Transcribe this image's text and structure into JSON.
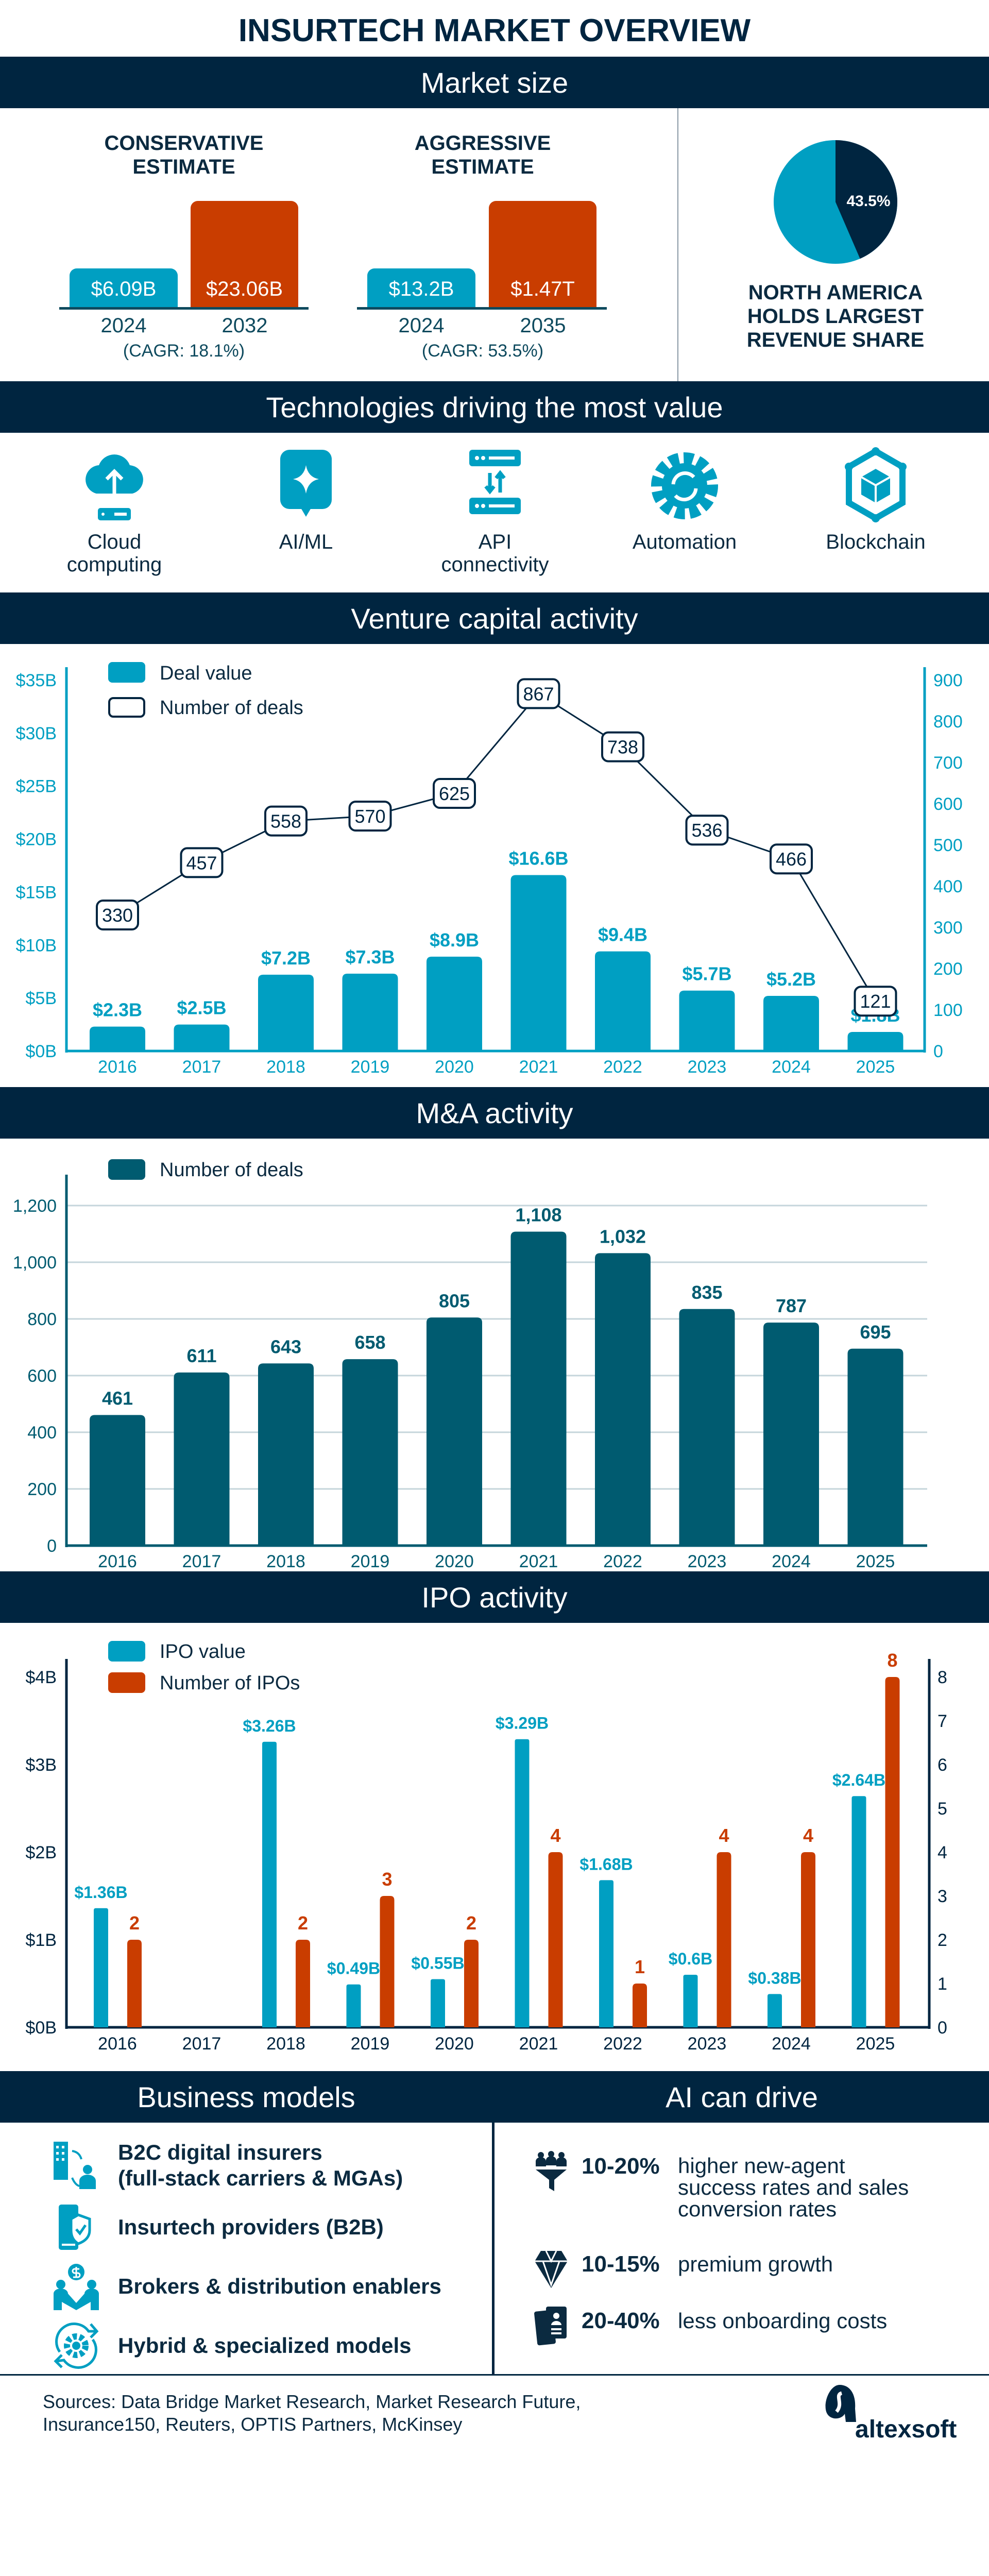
{
  "title": "INSURTECH MARKET OVERVIEW",
  "colors": {
    "navy": "#002540",
    "teal": "#009fc2",
    "orange": "#c93d00",
    "dark_teal": "#005b70",
    "text": "#0b2a40"
  },
  "market_size": {
    "header": "Market size",
    "conservative": {
      "title_line1": "CONSERVATIVE",
      "title_line2": "ESTIMATE",
      "start_value": "$6.09B",
      "end_value": "$23.06B",
      "start_year": "2024",
      "end_year": "2032",
      "cagr": "(CAGR: 18.1%)"
    },
    "aggressive": {
      "title_line1": "AGGRESSIVE",
      "title_line2": "ESTIMATE",
      "start_value": "$13.2B",
      "end_value": "$1.47T",
      "start_year": "2024",
      "end_year": "2035",
      "cagr": "(CAGR: 53.5%)"
    },
    "pie": {
      "share_percent": 43.5,
      "label": "43.5%",
      "caption_line1": "NORTH AMERICA",
      "caption_line2": "HOLDS LARGEST",
      "caption_line3": "REVENUE SHARE"
    }
  },
  "technologies": {
    "header": "Technologies driving the most value",
    "items": [
      {
        "icon": "cloud-upload-icon",
        "line1": "Cloud",
        "line2": "computing"
      },
      {
        "icon": "ai-sparkle-icon",
        "line1": "AI/ML",
        "line2": ""
      },
      {
        "icon": "api-server-icon",
        "line1": "API",
        "line2": "connectivity"
      },
      {
        "icon": "gear-sync-icon",
        "line1": "Automation",
        "line2": ""
      },
      {
        "icon": "blockchain-cube-icon",
        "line1": "Blockchain",
        "line2": ""
      }
    ]
  },
  "chart_data": [
    {
      "id": "vc",
      "header": "Venture capital activity",
      "type": "bar+line",
      "categories": [
        "2016",
        "2017",
        "2018",
        "2019",
        "2020",
        "2021",
        "2022",
        "2023",
        "2024",
        "2025"
      ],
      "series": [
        {
          "name": "Deal value",
          "type": "bar",
          "axis": "left",
          "values": [
            2.3,
            2.5,
            7.2,
            7.3,
            8.9,
            16.6,
            9.4,
            5.7,
            5.2,
            1.8
          ],
          "labels": [
            "$2.3B",
            "$2.5B",
            "$7.2B",
            "$7.3B",
            "$8.9B",
            "$16.6B",
            "$9.4B",
            "$5.7B",
            "$5.2B",
            "$1.8B"
          ]
        },
        {
          "name": "Number of deals",
          "type": "line",
          "axis": "right",
          "values": [
            330,
            457,
            558,
            570,
            625,
            867,
            738,
            536,
            466,
            121
          ],
          "labels": [
            "330",
            "457",
            "558",
            "570",
            "625",
            "867",
            "738",
            "536",
            "466",
            "121"
          ]
        }
      ],
      "y_left": {
        "ylim": [
          0,
          35
        ],
        "ticks": [
          "$0B",
          "$5B",
          "$10B",
          "$15B",
          "$20B",
          "$25B",
          "$30B",
          "$35B"
        ]
      },
      "y_right": {
        "ylim": [
          0,
          900
        ],
        "ticks": [
          "0",
          "100",
          "200",
          "300",
          "400",
          "500",
          "600",
          "700",
          "800",
          "900"
        ]
      },
      "grid": false,
      "legend": "top-left"
    },
    {
      "id": "ma",
      "header": "M&A activity",
      "type": "bar",
      "categories": [
        "2016",
        "2017",
        "2018",
        "2019",
        "2020",
        "2021",
        "2022",
        "2023",
        "2024",
        "2025"
      ],
      "series": [
        {
          "name": "Number of deals",
          "values": [
            461,
            611,
            643,
            658,
            805,
            1108,
            1032,
            835,
            787,
            695
          ],
          "labels": [
            "461",
            "611",
            "643",
            "658",
            "805",
            "1,108",
            "1,032",
            "835",
            "787",
            "695"
          ]
        }
      ],
      "y_left": {
        "ylim": [
          0,
          1300
        ],
        "ticks": [
          "0",
          "200",
          "400",
          "600",
          "800",
          "1,000",
          "1,200"
        ]
      },
      "grid": true,
      "legend": "top-left"
    },
    {
      "id": "ipo",
      "header": "IPO activity",
      "type": "grouped-bar",
      "categories": [
        "2016",
        "2017",
        "2018",
        "2019",
        "2020",
        "2021",
        "2022",
        "2023",
        "2024",
        "2025"
      ],
      "series": [
        {
          "name": "IPO value",
          "axis": "left",
          "values": [
            1.36,
            null,
            3.26,
            0.49,
            0.55,
            3.29,
            1.68,
            0.6,
            0.38,
            2.64
          ],
          "labels": [
            "$1.36B",
            "",
            "$3.26B",
            "$0.49B",
            "$0.55B",
            "$3.29B",
            "$1.68B",
            "$0.6B",
            "$0.38B",
            "$2.64B"
          ]
        },
        {
          "name": "Number of IPOs",
          "axis": "right",
          "values": [
            2,
            null,
            2,
            3,
            2,
            4,
            1,
            4,
            4,
            8
          ],
          "labels": [
            "2",
            "",
            "2",
            "3",
            "2",
            "4",
            "1",
            "4",
            "4",
            "8"
          ]
        }
      ],
      "y_left": {
        "ylim": [
          0,
          4
        ],
        "ticks": [
          "$0B",
          "$1B",
          "$2B",
          "$3B",
          "$4B"
        ]
      },
      "y_right": {
        "ylim": [
          0,
          8
        ],
        "ticks": [
          "0",
          "1",
          "2",
          "3",
          "4",
          "5",
          "6",
          "7",
          "8"
        ]
      },
      "grid": false,
      "legend": "top-left"
    }
  ],
  "business_models": {
    "header": "Business models",
    "items": [
      {
        "icon": "building-user-icon",
        "line1": "B2C digital insurers",
        "line2": "(full-stack carriers & MGAs)"
      },
      {
        "icon": "phone-shield-icon",
        "line1": "Insurtech providers (B2B)",
        "line2": ""
      },
      {
        "icon": "broker-handshake-icon",
        "line1": "Brokers & distribution enablers",
        "line2": ""
      },
      {
        "icon": "gear-cycle-icon",
        "line1": "Hybrid & specialized models",
        "line2": ""
      }
    ]
  },
  "ai_can_drive": {
    "header": "AI can drive",
    "items": [
      {
        "icon": "people-funnel-icon",
        "percent": "10-20%",
        "line1": "higher new-agent",
        "line2": "success rates and sales",
        "line3": "conversion rates"
      },
      {
        "icon": "diamond-icon",
        "percent": "10-15%",
        "line1": "premium growth",
        "line2": "",
        "line3": ""
      },
      {
        "icon": "id-card-icon",
        "percent": "20-40%",
        "line1": "less onboarding costs",
        "line2": "",
        "line3": ""
      }
    ]
  },
  "footer": {
    "sources_line1": "Sources: Data Bridge Market Research, Market Research Future,",
    "sources_line2": "Insurance150, Reuters, OPTIS Partners, McKinsey",
    "logo_text": "altexsoft"
  }
}
